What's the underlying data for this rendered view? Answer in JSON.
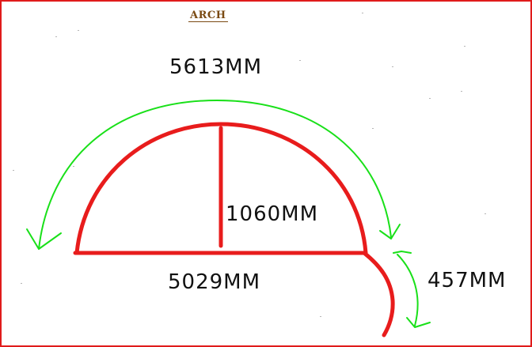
{
  "diagram": {
    "title": "ARCH",
    "labels": {
      "arc_length": "5613MM",
      "height": "1060MM",
      "chord": "5029MM",
      "side_curve": "457MM"
    },
    "colors": {
      "arch_shape": "#e81c1c",
      "dimension_arrows": "#19e019",
      "text": "#111111",
      "title": "#7a4a12",
      "frame": "#e01b1b"
    }
  }
}
